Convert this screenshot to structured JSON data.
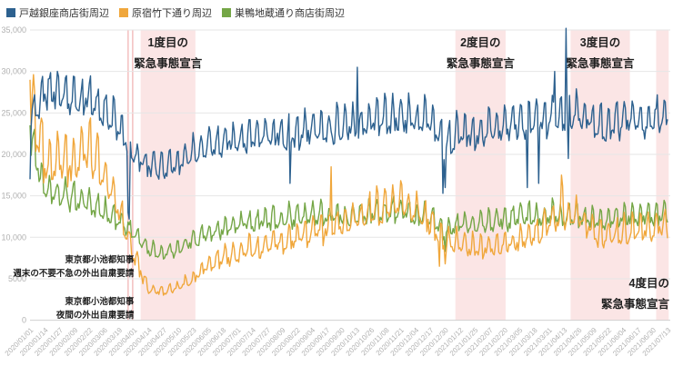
{
  "chart_data": {
    "type": "line",
    "title": "",
    "xlabel": "",
    "ylabel": "",
    "grid": "horizontal-only",
    "legend_position": "top-left",
    "background_color": "#ffffff",
    "grid_color": "#e6e6e6",
    "axis_line_color": "#d0d0d0",
    "axis_text_color": "#b0b0b0",
    "annotation_text_color": "#1f1f1f",
    "band_fill_color": "#fbe5e5",
    "event_line_color": "#f3c3c3",
    "x_axis": {
      "start_label": "2020/01/01",
      "end_label": "2021/07/13",
      "tick_interval_days": 13,
      "total_days": 560,
      "tick_labels": [
        "2020/01/01",
        "2020/01/14",
        "2020/01/27",
        "2020/02/09",
        "2020/02/22",
        "2020/03/06",
        "2020/03/19",
        "2020/04/01",
        "2020/04/14",
        "2020/04/27",
        "2020/05/10",
        "2020/05/23",
        "2020/06/05",
        "2020/06/18",
        "2020/07/01",
        "2020/07/14",
        "2020/07/27",
        "2020/08/09",
        "2020/08/22",
        "2020/09/04",
        "2020/09/17",
        "2020/09/30",
        "2020/10/13",
        "2020/10/26",
        "2020/11/08",
        "2020/11/21",
        "2020/12/04",
        "2020/12/17",
        "2020/12/30",
        "2021/01/12",
        "2021/01/25",
        "2021/02/07",
        "2021/02/20",
        "2021/03/05",
        "2021/03/18",
        "2021/03/31",
        "2021/04/13",
        "2021/04/26",
        "2021/05/09",
        "2021/05/22",
        "2021/06/04",
        "2021/06/17",
        "2021/06/30",
        "2021/07/13"
      ]
    },
    "y_axis": {
      "min": 0,
      "max": 35000,
      "tick_values": [
        0,
        5000,
        10000,
        15000,
        20000,
        25000,
        30000,
        35000
      ],
      "tick_labels": [
        "0",
        "5000",
        "10,000",
        "15,000",
        "20,000",
        "25,000",
        "30,000",
        "35,000"
      ]
    },
    "series": [
      {
        "id": "togoshi",
        "name": "戸越銀座商店街周辺",
        "color": "#2d618f",
        "anchor_step_days": 13,
        "weekly_amplitude": 0.09,
        "noise": 0.055,
        "seed": 11,
        "anchors": [
          24000,
          27500,
          27500,
          26500,
          26500,
          25000,
          23500,
          20000,
          18500,
          18500,
          19000,
          20000,
          21000,
          21500,
          22000,
          22000,
          22500,
          22500,
          22500,
          23000,
          23000,
          23500,
          23500,
          24000,
          24500,
          24500,
          24000,
          24000,
          21000,
          22500,
          22500,
          23000,
          23500,
          23500,
          24000,
          24000,
          24500,
          25000,
          23500,
          23500,
          24000,
          24000,
          24000,
          25000
        ],
        "overrides": [
          {
            "day": 0,
            "value": 17000
          },
          {
            "day": 86,
            "value": 13000
          },
          {
            "day": 87,
            "value": 12200
          },
          {
            "day": 228,
            "value": 16500
          },
          {
            "day": 287,
            "value": 30500
          },
          {
            "day": 362,
            "value": 15300
          },
          {
            "day": 364,
            "value": 16000
          },
          {
            "day": 436,
            "value": 16000
          },
          {
            "day": 446,
            "value": 16500
          },
          {
            "day": 460,
            "value": 30000
          },
          {
            "day": 470,
            "value": 35200
          },
          {
            "day": 472,
            "value": 19500
          }
        ]
      },
      {
        "id": "harajuku",
        "name": "原宿竹下通り周辺",
        "color": "#f0a73c",
        "anchor_step_days": 13,
        "weekly_amplitude": 0.16,
        "noise": 0.1,
        "seed": 22,
        "anchors": [
          27000,
          19500,
          19500,
          19000,
          21000,
          17000,
          13500,
          8000,
          3500,
          3500,
          4000,
          5000,
          6500,
          7500,
          8000,
          8500,
          9000,
          9500,
          10000,
          10500,
          11000,
          11500,
          12000,
          13000,
          13500,
          14000,
          13000,
          12000,
          9500,
          9000,
          8500,
          8500,
          9000,
          9500,
          10500,
          11500,
          12000,
          12500,
          10500,
          10500,
          10500,
          11000,
          11000,
          11500
        ],
        "overrides": [
          {
            "day": 0,
            "value": 29000
          },
          {
            "day": 264,
            "value": 18500
          },
          {
            "day": 359,
            "value": 6500
          },
          {
            "day": 364,
            "value": 6800
          },
          {
            "day": 466,
            "value": 17500
          },
          {
            "day": 467,
            "value": 16200
          }
        ]
      },
      {
        "id": "sugamo",
        "name": "巣鴨地蔵通り商店街周辺",
        "color": "#74a646",
        "anchor_step_days": 13,
        "weekly_amplitude": 0.11,
        "noise": 0.07,
        "seed": 33,
        "anchors": [
          22000,
          15500,
          15000,
          14500,
          14000,
          13000,
          12000,
          10500,
          8500,
          8000,
          8500,
          9500,
          10500,
          11000,
          11500,
          11500,
          12000,
          12000,
          12500,
          12500,
          12500,
          12500,
          12500,
          13000,
          13000,
          13000,
          12500,
          12500,
          10500,
          11500,
          11500,
          12000,
          12000,
          12500,
          12500,
          12500,
          12500,
          12500,
          12000,
          12000,
          12500,
          12500,
          12500,
          13000
        ],
        "overrides": [
          {
            "day": 0,
            "value": 23500
          },
          {
            "day": 364,
            "value": 8300
          }
        ]
      }
    ],
    "emergency_bands": [
      {
        "id": "sev1",
        "start_day": 97,
        "end_day": 145,
        "label_lines": [
          "1度目の",
          "緊急事態宣言"
        ],
        "label_placement": "top-center"
      },
      {
        "id": "sev2",
        "start_day": 373,
        "end_day": 417,
        "label_lines": [
          "2度目の",
          "緊急事態宣言"
        ],
        "label_placement": "top-center"
      },
      {
        "id": "sev3",
        "start_day": 474,
        "end_day": 526,
        "label_lines": [
          "3度目の",
          "緊急事態宣言"
        ],
        "label_placement": "top-center"
      },
      {
        "id": "sev4",
        "start_day": 549,
        "end_day": 560,
        "label_lines": [
          "4度目の",
          "緊急事態宣言"
        ],
        "label_placement": "bottom-right"
      }
    ],
    "event_lines": [
      {
        "id": "koike-weekend",
        "day": 86,
        "label_lines": [
          "東京都小池都知事",
          "週末の不要不急の外出自粛要請"
        ]
      },
      {
        "id": "koike-night",
        "day": 90,
        "label_lines": [
          "東京都小池都知事",
          "夜間の外出自粛要請"
        ]
      }
    ]
  }
}
